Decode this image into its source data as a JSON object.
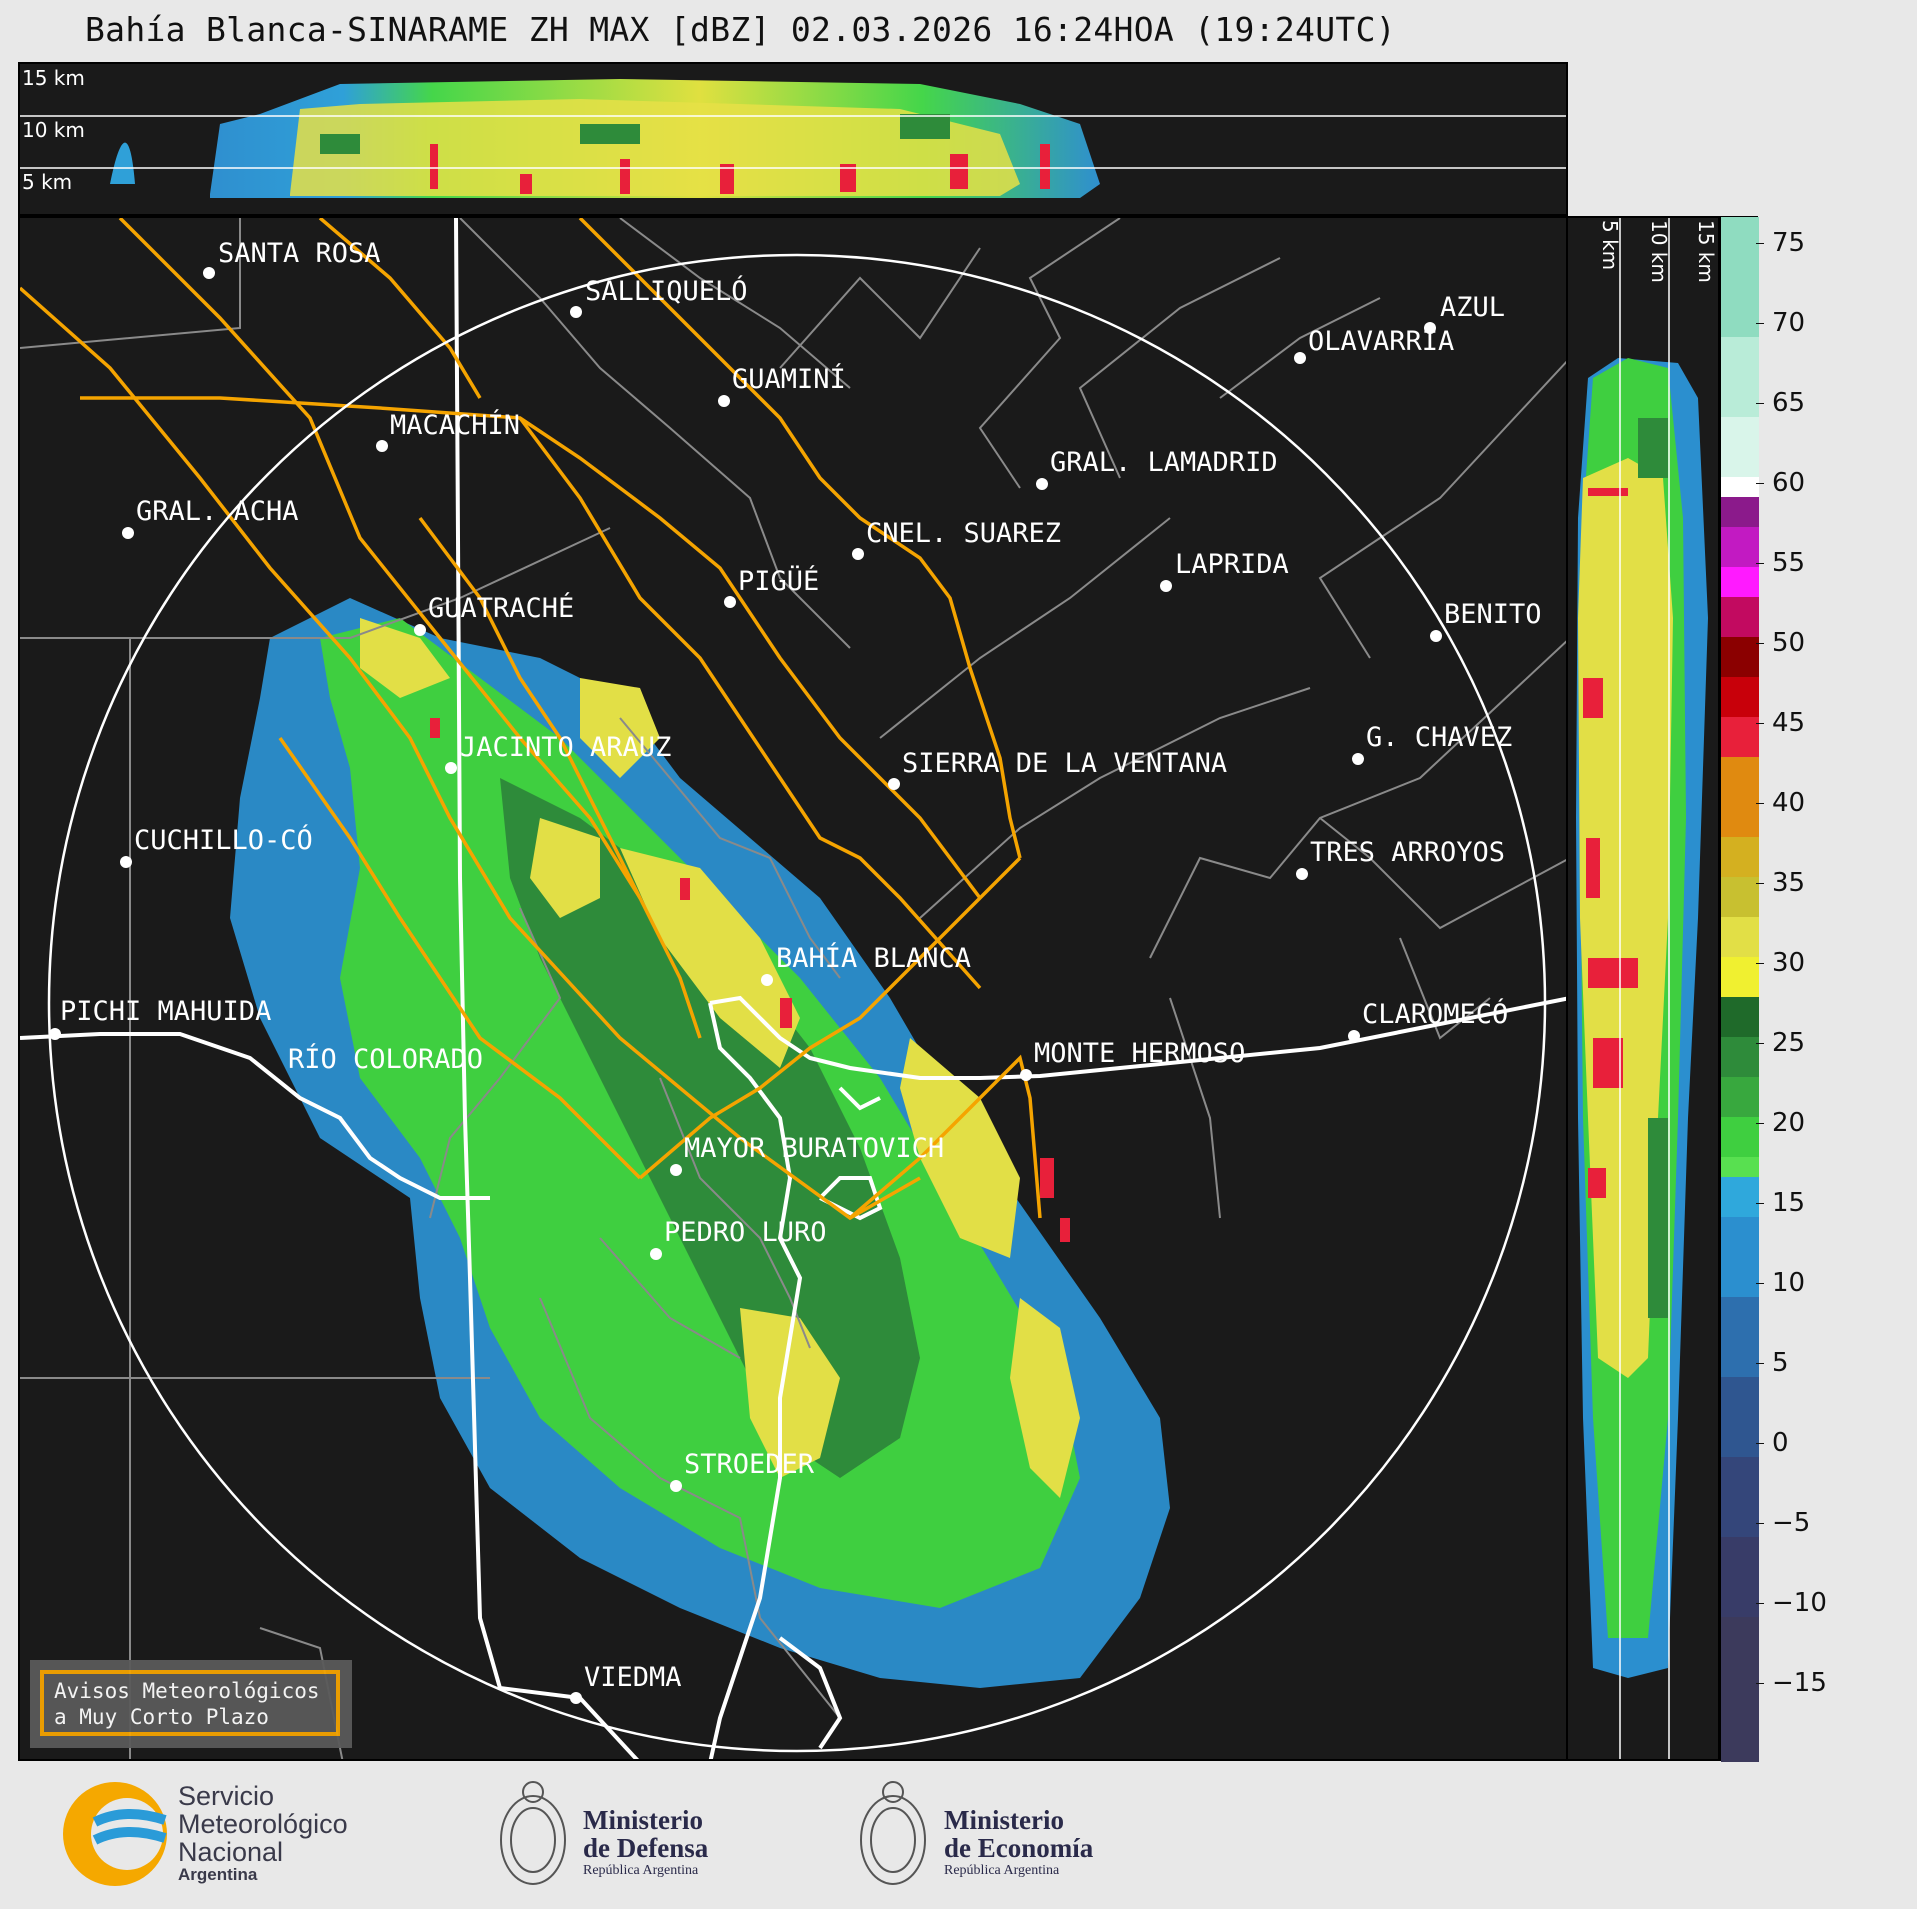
{
  "title": "Bahía Blanca-SINARAME ZH MAX [dBZ] 02.03.2026 16:24HOA (19:24UTC)",
  "top_panel": {
    "altitude_labels": [
      "15 km",
      "10 km",
      "5 km"
    ]
  },
  "side_panel": {
    "altitude_labels": [
      "5 km",
      "10 km",
      "15 km"
    ]
  },
  "colorbar": {
    "unit": "dBZ",
    "ticks": [
      "75",
      "70",
      "65",
      "60",
      "55",
      "50",
      "45",
      "40",
      "35",
      "30",
      "25",
      "20",
      "15",
      "10",
      "5",
      "0",
      "−5",
      "−10",
      "−15"
    ],
    "range": [
      -20,
      77
    ]
  },
  "cities": [
    {
      "name": "SANTA ROSA"
    },
    {
      "name": "SALLIQUELÓ"
    },
    {
      "name": "AZUL"
    },
    {
      "name": "OLAVARRÍA"
    },
    {
      "name": "GUAMINÍ"
    },
    {
      "name": "MACACHÍN"
    },
    {
      "name": "GRAL. LAMADRID"
    },
    {
      "name": "GRAL. ACHA"
    },
    {
      "name": "CNEL. SUAREZ"
    },
    {
      "name": "LAPRIDA"
    },
    {
      "name": "PIGÜÉ"
    },
    {
      "name": "BENITO"
    },
    {
      "name": "GUATRACHÉ"
    },
    {
      "name": "G. CHAVEZ"
    },
    {
      "name": "JACINTO ARAUZ"
    },
    {
      "name": "SIERRA DE LA VENTANA"
    },
    {
      "name": "CUCHILLO-CÓ"
    },
    {
      "name": "TRES ARROYOS"
    },
    {
      "name": "BAHÍA BLANCA"
    },
    {
      "name": "PICHI MAHUIDA"
    },
    {
      "name": "CLAROMECÓ"
    },
    {
      "name": "MONTE HERMOSO"
    },
    {
      "name": "RÍO COLORADO"
    },
    {
      "name": "MAYOR BURATOVICH"
    },
    {
      "name": "PEDRO LURO"
    },
    {
      "name": "STROEDER"
    },
    {
      "name": "VIEDMA"
    }
  ],
  "avisos": {
    "line1": "Avisos Meteorológicos",
    "line2": "a Muy Corto Plazo"
  },
  "logos": {
    "smn": {
      "line1": "Servicio",
      "line2": "Meteorológico",
      "line3": "Nacional",
      "line4": "Argentina"
    },
    "defensa": {
      "line1": "Ministerio",
      "line2": "de Defensa",
      "line3": "República Argentina"
    },
    "economia": {
      "line1": "Ministerio",
      "line2": "de Economía",
      "line3": "República Argentina"
    }
  },
  "colors": {
    "warning_outline": "#f5a400",
    "background": "#1a1a1a",
    "range_ring": "#ffffff"
  }
}
